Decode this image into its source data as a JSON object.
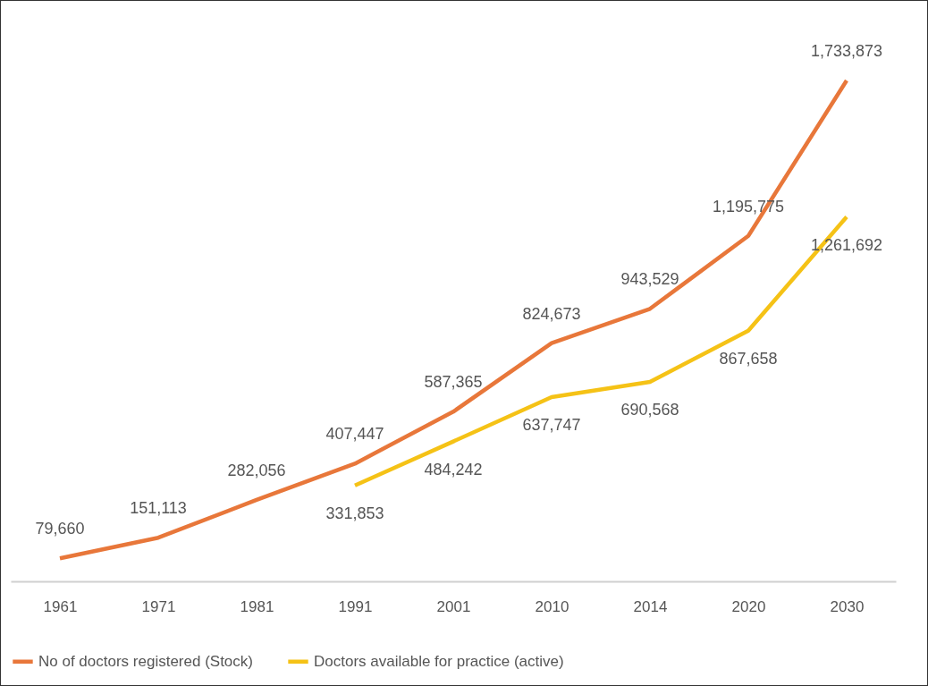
{
  "chart_data": {
    "type": "line",
    "categories": [
      "1961",
      "1971",
      "1981",
      "1991",
      "2001",
      "2010",
      "2014",
      "2020",
      "2030"
    ],
    "series": [
      {
        "name": "No of doctors registered (Stock)",
        "color": "#e8773a",
        "values": [
          79660,
          151113,
          282056,
          407447,
          587365,
          824673,
          943529,
          1195775,
          1733873
        ],
        "value_labels": [
          "79,660",
          "151,113",
          "282,056",
          "407,447",
          "587,365",
          "824,673",
          "943,529",
          "1,195,775",
          "1,733,873"
        ]
      },
      {
        "name": "Doctors available for practice (active)",
        "color": "#f5c216",
        "values": [
          null,
          null,
          null,
          331853,
          484242,
          637747,
          690568,
          867658,
          1261692
        ],
        "value_labels": [
          null,
          null,
          null,
          "331,853",
          "484,242",
          "637,747",
          "690,568",
          "867,658",
          "1,261,692"
        ]
      }
    ],
    "legend": "bottom",
    "grid": false,
    "marker": "none",
    "line_style": "solid"
  }
}
